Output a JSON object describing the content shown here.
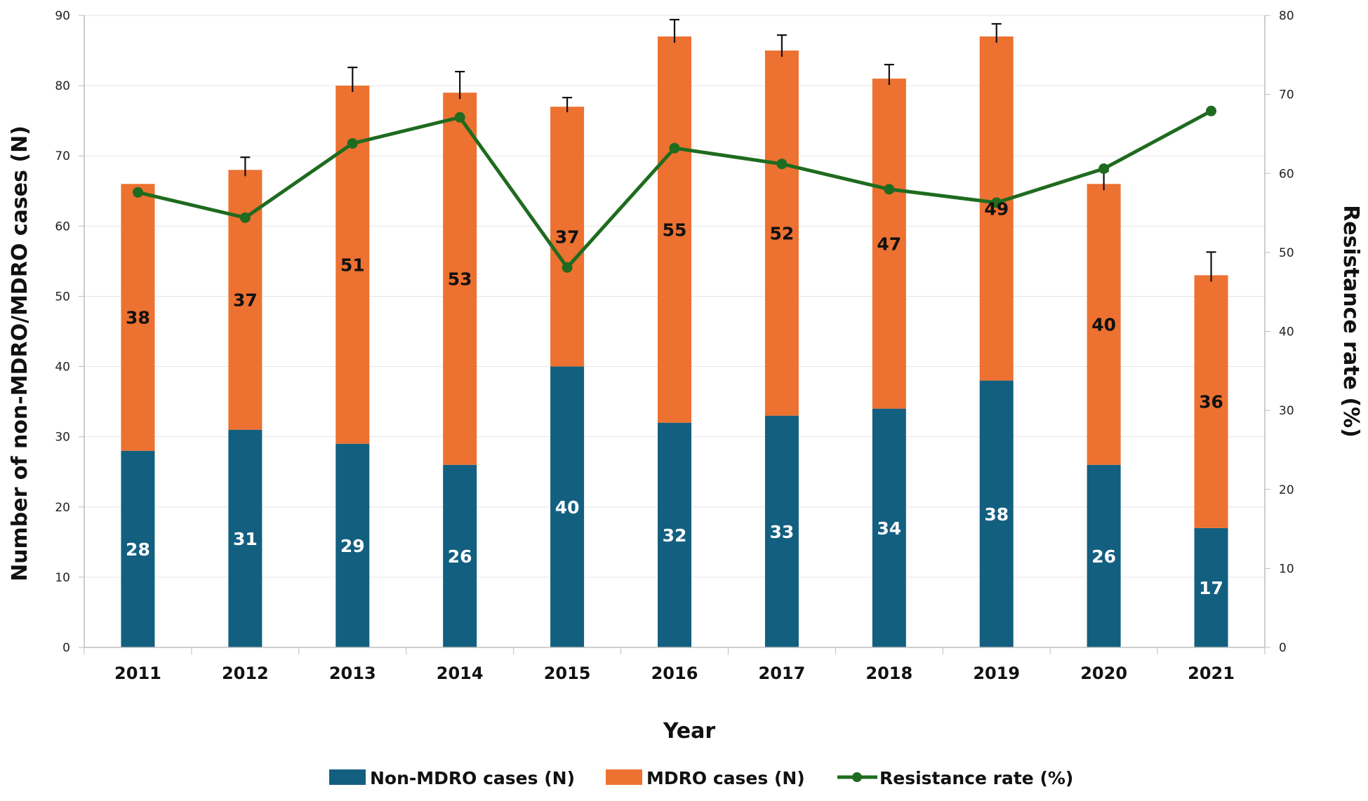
{
  "chart_data": {
    "type": "bar",
    "stacked": true,
    "title": "",
    "categories": [
      "2011",
      "2012",
      "2013",
      "2014",
      "2015",
      "2016",
      "2017",
      "2018",
      "2019",
      "2020",
      "2021"
    ],
    "series": [
      {
        "name": "Non-MDRO cases (N)",
        "axis": "left",
        "type": "bar",
        "color": "#135f80",
        "label_color": "#ffffff",
        "values": [
          28,
          31,
          29,
          26,
          40,
          32,
          33,
          34,
          38,
          26,
          17
        ]
      },
      {
        "name": "MDRO cases (N)",
        "axis": "left",
        "type": "bar",
        "color": "#ed7131",
        "label_color": "#111111",
        "values": [
          38,
          37,
          51,
          53,
          37,
          55,
          52,
          47,
          49,
          40,
          36
        ]
      },
      {
        "name": "Resistance rate (%)",
        "axis": "right",
        "type": "line",
        "color": "#1f6b1f",
        "values": [
          57.6,
          54.4,
          63.8,
          67.1,
          48.1,
          63.2,
          61.2,
          58.0,
          56.3,
          60.6,
          67.9
        ]
      }
    ],
    "error_bar_tops": [
      null,
      69.8,
      82.6,
      82.0,
      78.3,
      89.4,
      87.2,
      83.0,
      88.8,
      67.8,
      56.3
    ],
    "xlabel": "Year",
    "ylabel": "Number of non-MDRO/MDRO cases (N)",
    "y2label": "Resistance rate (%)",
    "ylim": [
      0,
      90
    ],
    "y2lim": [
      0,
      80
    ],
    "yticks": [
      0,
      10,
      20,
      30,
      40,
      50,
      60,
      70,
      80,
      90
    ],
    "y2ticks": [
      0,
      10,
      20,
      30,
      40,
      50,
      60,
      70,
      80
    ],
    "grid": true,
    "legend_position": "bottom"
  }
}
